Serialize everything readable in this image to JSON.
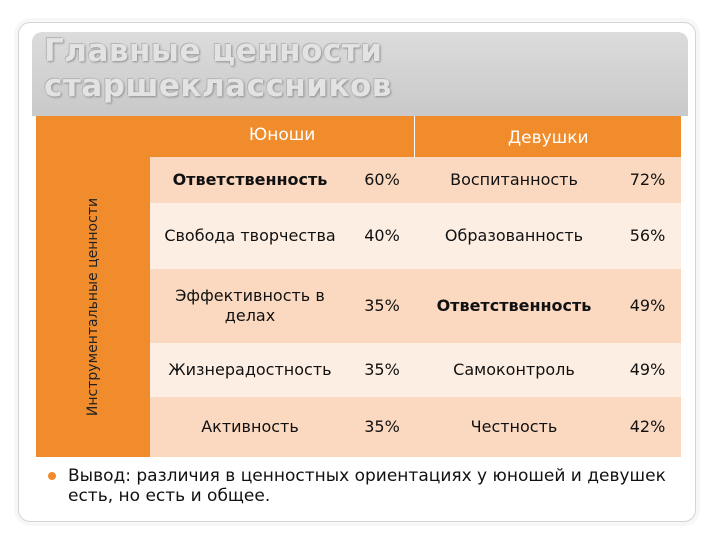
{
  "title": "Главные ценности старшеклассников",
  "table": {
    "row_label": "Инструментальные ценности",
    "header_boys": "Юноши",
    "header_girls": "Девушки",
    "rows": [
      {
        "boy_value": "Ответственность",
        "boy_pct": "60%",
        "girl_value": "Воспитанность",
        "girl_pct": "72%"
      },
      {
        "boy_value": "Свобода творчества",
        "boy_pct": "40%",
        "girl_value": "Образованность",
        "girl_pct": "56%"
      },
      {
        "boy_value": "Эффективность в делах",
        "boy_pct": "35%",
        "girl_value": "Ответственность",
        "girl_pct": "49%"
      },
      {
        "boy_value": "Жизнерадостность",
        "boy_pct": "35%",
        "girl_value": "Самоконтроль",
        "girl_pct": "49%"
      },
      {
        "boy_value": "Активность",
        "boy_pct": "35%",
        "girl_value": "Честность",
        "girl_pct": "42%"
      }
    ]
  },
  "conclusion": "Вывод: различия в ценностных ориентациях у юношей и девушек есть, но есть и общее.",
  "colors": {
    "accent": "#f08c2c",
    "row_dark": "#fbd9c0",
    "row_light": "#fdeee3"
  }
}
